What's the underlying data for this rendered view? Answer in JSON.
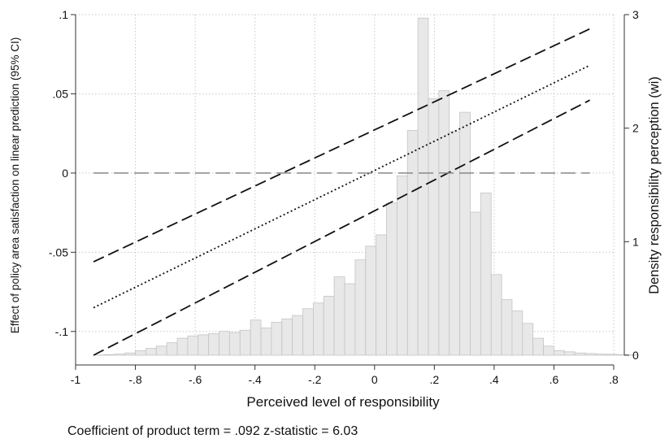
{
  "chart_data": {
    "type": "line",
    "xlabel": "Perceived level of responsibility",
    "ylabel": "Effect of policy area satisfaction on linear prediction (95% CI)",
    "y2label": "Density responsibility perception (wi)",
    "note": "Coefficient of product term = .092 z-statistic = 6.03",
    "xlim": [
      -1,
      0.8
    ],
    "ylim": [
      -0.115,
      0.1
    ],
    "y2lim": [
      0,
      3
    ],
    "x_ticks": [
      {
        "value": -1,
        "label": "-1"
      },
      {
        "value": -0.8,
        "label": "-.8"
      },
      {
        "value": -0.6,
        "label": "-.6"
      },
      {
        "value": -0.4,
        "label": "-.4"
      },
      {
        "value": -0.2,
        "label": "-.2"
      },
      {
        "value": 0,
        "label": "0"
      },
      {
        "value": 0.2,
        "label": ".2"
      },
      {
        "value": 0.4,
        "label": ".4"
      },
      {
        "value": 0.6,
        "label": ".6"
      },
      {
        "value": 0.8,
        "label": ".8"
      }
    ],
    "y_ticks": [
      {
        "value": 0.1,
        "label": ".1"
      },
      {
        "value": 0.05,
        "label": ".05"
      },
      {
        "value": 0,
        "label": "0"
      },
      {
        "value": -0.05,
        "label": "-.05"
      },
      {
        "value": -0.1,
        "label": "-.1"
      }
    ],
    "y2_ticks": [
      {
        "value": 0,
        "label": "0"
      },
      {
        "value": 1,
        "label": "1"
      },
      {
        "value": 2,
        "label": "2"
      },
      {
        "value": 3,
        "label": "3"
      }
    ],
    "grid": true,
    "lines": [
      {
        "role": "upper-ci",
        "style": "dashed",
        "x": [
          -0.94,
          0.72
        ],
        "y": [
          -0.056,
          0.091
        ]
      },
      {
        "role": "estimate",
        "style": "dotted",
        "x": [
          -0.94,
          0.72
        ],
        "y": [
          -0.085,
          0.068
        ]
      },
      {
        "role": "lower-ci",
        "style": "dashed",
        "x": [
          -0.94,
          0.72
        ],
        "y": [
          -0.115,
          0.046
        ]
      },
      {
        "role": "zero-reference",
        "style": "long-dash",
        "x": [
          -0.94,
          0.72
        ],
        "y": [
          0,
          0
        ]
      }
    ],
    "histogram": {
      "bin_width": 0.035,
      "start": -0.94,
      "density": [
        0.002,
        0.005,
        0.01,
        0.02,
        0.04,
        0.06,
        0.08,
        0.11,
        0.15,
        0.17,
        0.18,
        0.19,
        0.21,
        0.2,
        0.22,
        0.31,
        0.24,
        0.29,
        0.32,
        0.35,
        0.41,
        0.46,
        0.52,
        0.69,
        0.63,
        0.84,
        0.96,
        1.06,
        1.34,
        1.58,
        1.98,
        2.97,
        2.26,
        2.33,
        1.97,
        2.14,
        1.26,
        1.43,
        0.71,
        0.49,
        0.39,
        0.28,
        0.15,
        0.08,
        0.04,
        0.03,
        0.02,
        0.015,
        0.01,
        0.008,
        0.005,
        0.003
      ],
      "fill": "#e8e8e8",
      "stroke": "#c4c4c4"
    }
  }
}
